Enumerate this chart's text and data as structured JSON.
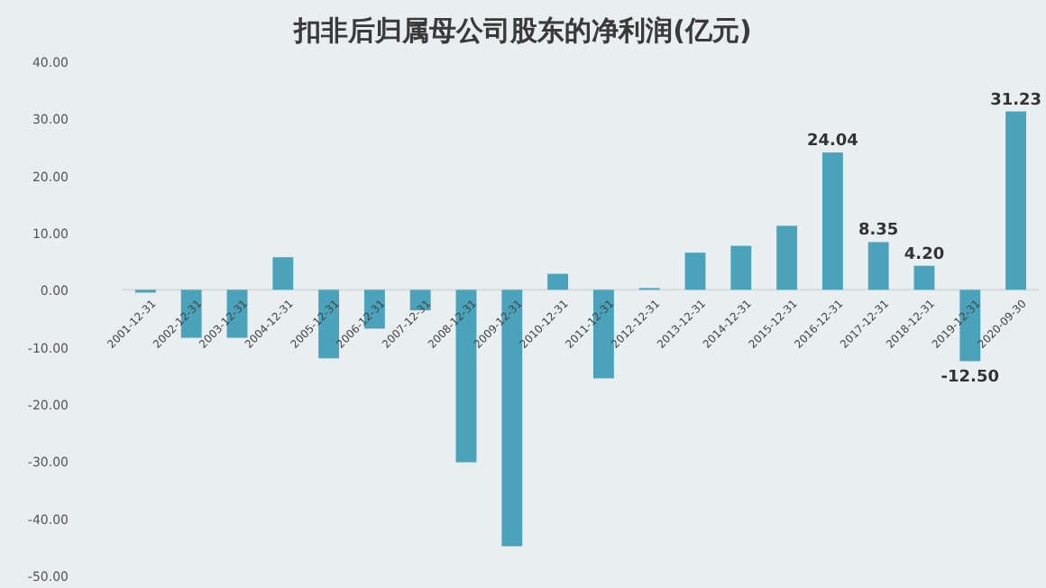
{
  "chart_data": {
    "type": "bar",
    "title": "扣非后归属母公司股东的净利润(亿元)",
    "categories": [
      "2001-12-31",
      "2002-12-31",
      "2003-12-31",
      "2004-12-31",
      "2005-12-31",
      "2006-12-31",
      "2007-12-31",
      "2008-12-31",
      "2009-12-31",
      "2010-12-31",
      "2011-12-31",
      "2012-12-31",
      "2013-12-31",
      "2014-12-31",
      "2015-12-31",
      "2016-12-31",
      "2017-12-31",
      "2018-12-31",
      "2019-12-31",
      "2020-09-30"
    ],
    "values": [
      -0.5,
      -8.4,
      -8.4,
      5.7,
      -12.0,
      -6.8,
      -3.6,
      -30.2,
      -44.9,
      2.8,
      -15.5,
      0.3,
      6.5,
      7.7,
      11.2,
      24.04,
      8.35,
      4.2,
      -12.5,
      31.23
    ],
    "value_labels": [
      null,
      null,
      null,
      null,
      null,
      null,
      null,
      null,
      null,
      null,
      null,
      null,
      null,
      null,
      null,
      "24.04",
      "8.35",
      "4.20",
      "-12.50",
      "31.23"
    ],
    "color": "#4aa3bb",
    "ylim": [
      -50,
      40
    ],
    "yticks": [
      {
        "value": -50,
        "label": "-50.00"
      },
      {
        "value": -40,
        "label": "-40.00"
      },
      {
        "value": -30,
        "label": "-30.00"
      },
      {
        "value": -20,
        "label": "-20.00"
      },
      {
        "value": -10,
        "label": "-10.00"
      },
      {
        "value": 0,
        "label": "0.00"
      },
      {
        "value": 10,
        "label": "10.00"
      },
      {
        "value": 20,
        "label": "20.00"
      },
      {
        "value": 30,
        "label": "30.00"
      },
      {
        "value": 40,
        "label": "40.00"
      }
    ]
  }
}
